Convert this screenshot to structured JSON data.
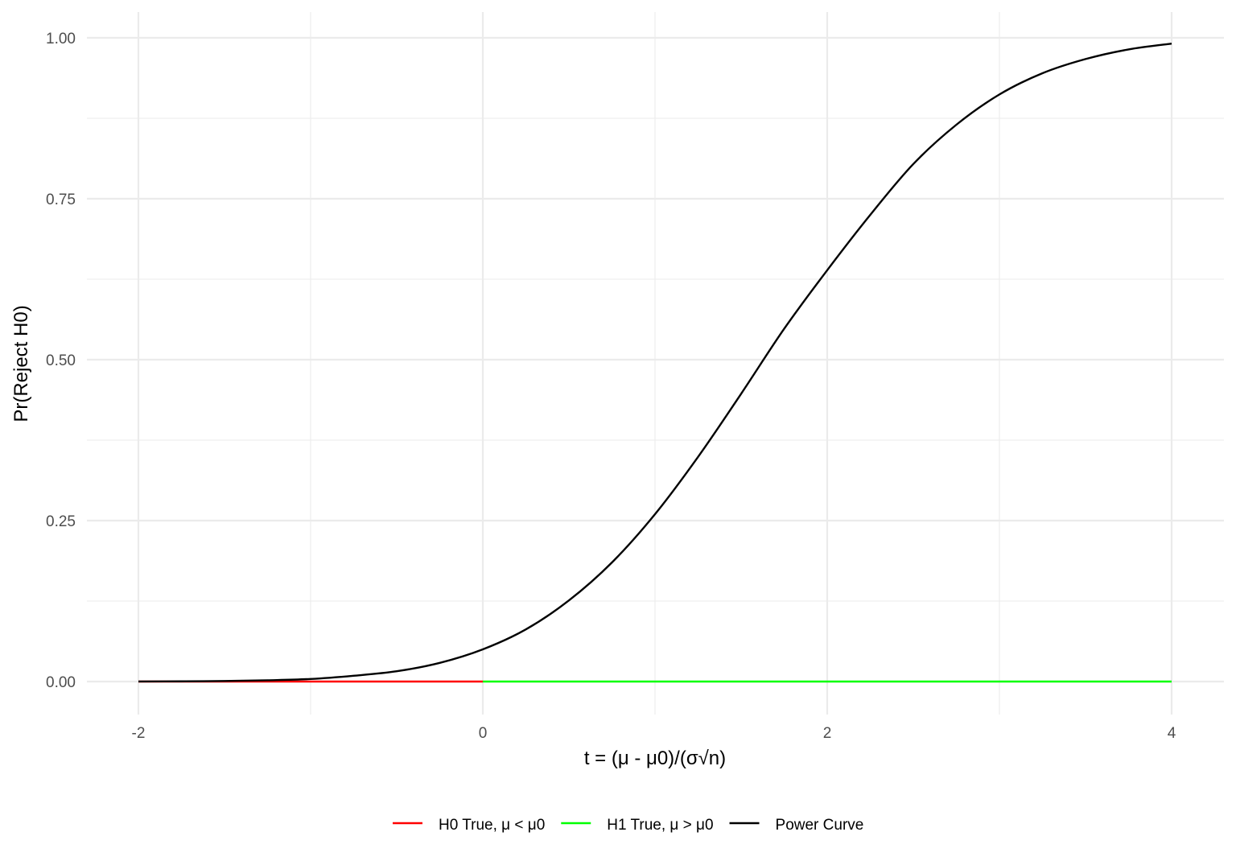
{
  "chart_data": {
    "type": "line",
    "xlabel": "t =  (μ - μ0)/(σ√n)",
    "ylabel": "Pr(Reject H0)",
    "xlim": [
      -2,
      4
    ],
    "ylim": [
      0,
      1
    ],
    "x_ticks": [
      -2,
      0,
      2,
      4
    ],
    "x_tick_labels": [
      "-2",
      "0",
      "2",
      "4"
    ],
    "y_ticks": [
      0,
      0.25,
      0.5,
      0.75,
      1
    ],
    "y_tick_labels": [
      "0.00",
      "0.25",
      "0.50",
      "0.75",
      "1.00"
    ],
    "grid": true,
    "legend_position": "bottom",
    "series": [
      {
        "name": "H0 True, μ < μ0",
        "color": "#ff0000",
        "x": [
          -2,
          0
        ],
        "y": [
          0,
          0
        ]
      },
      {
        "name": "H1 True, μ > μ0",
        "color": "#00ff00",
        "x": [
          0,
          4
        ],
        "y": [
          0,
          0
        ]
      },
      {
        "name": "Power Curve",
        "color": "#000000",
        "x": [
          -2,
          -1.75,
          -1.5,
          -1.25,
          -1,
          -0.75,
          -0.5,
          -0.25,
          0,
          0.25,
          0.5,
          0.75,
          1,
          1.25,
          1.5,
          1.75,
          2,
          2.25,
          2.5,
          2.75,
          3,
          3.25,
          3.5,
          3.75,
          4
        ],
        "y": [
          0.0001,
          0.0003,
          0.0008,
          0.002,
          0.004,
          0.009,
          0.016,
          0.029,
          0.05,
          0.081,
          0.126,
          0.185,
          0.26,
          0.349,
          0.447,
          0.548,
          0.639,
          0.725,
          0.804,
          0.865,
          0.912,
          0.945,
          0.967,
          0.982,
          0.991
        ]
      }
    ]
  }
}
